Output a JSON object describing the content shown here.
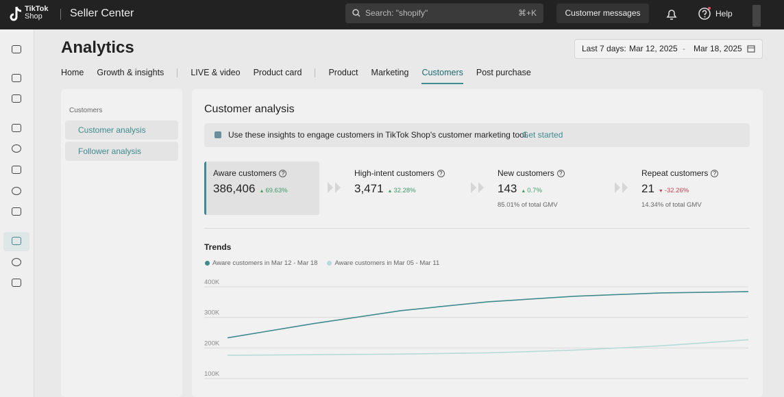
{
  "header": {
    "logo_top": "TikTok",
    "logo_bottom": "Shop",
    "brand": "Seller Center",
    "search": "Search: \"shopify\"",
    "shortcut": "⌘+K",
    "messages": "Customer messages",
    "help": "Help"
  },
  "page": {
    "title": "Analytics",
    "date_prefix": "Last 7 days:",
    "date_start": "Mar 12, 2025",
    "date_sep": "-",
    "date_end": "Mar 18, 2025"
  },
  "tabs": [
    {
      "label": "Home"
    },
    {
      "label": "Growth & insights"
    },
    {
      "label": "LIVE & video"
    },
    {
      "label": "Product card"
    },
    {
      "label": "Product"
    },
    {
      "label": "Marketing"
    },
    {
      "label": "Customers",
      "active": true
    },
    {
      "label": "Post purchase"
    }
  ],
  "sidenav": {
    "heading": "Customers",
    "items": [
      "Customer analysis",
      "Follower analysis"
    ]
  },
  "panel": {
    "title": "Customer analysis",
    "banner": "Use these insights to engage customers in TikTok Shop's customer marketing tool.",
    "banner_link": "Get started"
  },
  "metrics": [
    {
      "label": "Aware customers",
      "value": "386,406",
      "change": "69.63%",
      "direction": "up"
    },
    {
      "label": "High-intent customers",
      "value": "3,471",
      "change": "32.28%",
      "direction": "up"
    },
    {
      "label": "New customers",
      "value": "143",
      "change": "0.7%",
      "direction": "up",
      "note": "85.01% of total GMV"
    },
    {
      "label": "Repeat customers",
      "value": "21",
      "change": "-32.26%",
      "direction": "down",
      "note": "14.34% of total GMV"
    }
  ],
  "chart_data": {
    "type": "line",
    "title": "Trends",
    "series": [
      {
        "name": "Aware customers in Mar 12 - Mar 18",
        "color": "#3e8a8e",
        "values": [
          233000,
          280000,
          322000,
          351000,
          369000,
          380000,
          384000
        ]
      },
      {
        "name": "Aware customers in Mar 05 - Mar 11",
        "color": "#b5dbd6",
        "values": [
          176000,
          178000,
          180000,
          184000,
          193000,
          207000,
          227000
        ]
      }
    ],
    "ylim": [
      100000,
      400000
    ],
    "yticks": [
      {
        "value": 100000,
        "label": "100K"
      },
      {
        "value": 200000,
        "label": "200K"
      },
      {
        "value": 300000,
        "label": "300K"
      },
      {
        "value": 400000,
        "label": "400K"
      }
    ],
    "grid": true
  }
}
